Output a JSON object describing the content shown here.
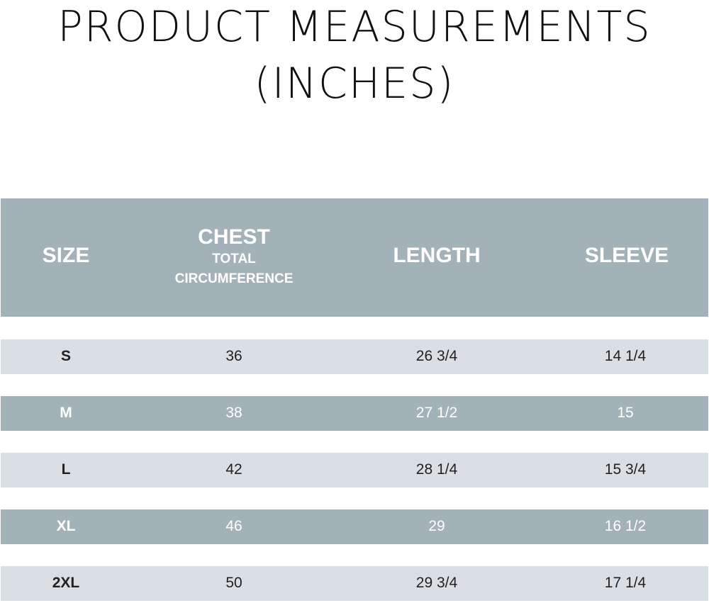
{
  "title": {
    "line1": "PRODUCT MEASUREMENTS",
    "line2": "(INCHES)"
  },
  "header": {
    "size": "SIZE",
    "chest": "CHEST",
    "chest_sub1": "TOTAL",
    "chest_sub2": "CIRCUMFERENCE",
    "length": "LENGTH",
    "sleeve": "SLEEVE"
  },
  "rows": [
    {
      "size": "S",
      "chest": "36",
      "length": "26 3/4",
      "sleeve": "14 1/4"
    },
    {
      "size": "M",
      "chest": "38",
      "length": "27 1/2",
      "sleeve": "15"
    },
    {
      "size": "L",
      "chest": "42",
      "length": "28 1/4",
      "sleeve": "15 3/4"
    },
    {
      "size": "XL",
      "chest": "46",
      "length": "29",
      "sleeve": "16 1/2"
    },
    {
      "size": "2XL",
      "chest": "50",
      "length": "29 3/4",
      "sleeve": "17 1/4"
    }
  ],
  "colors": {
    "header_bg": "#a3b1b9",
    "row_light": "#dadfe3",
    "row_dark": "#a3b1b9"
  }
}
